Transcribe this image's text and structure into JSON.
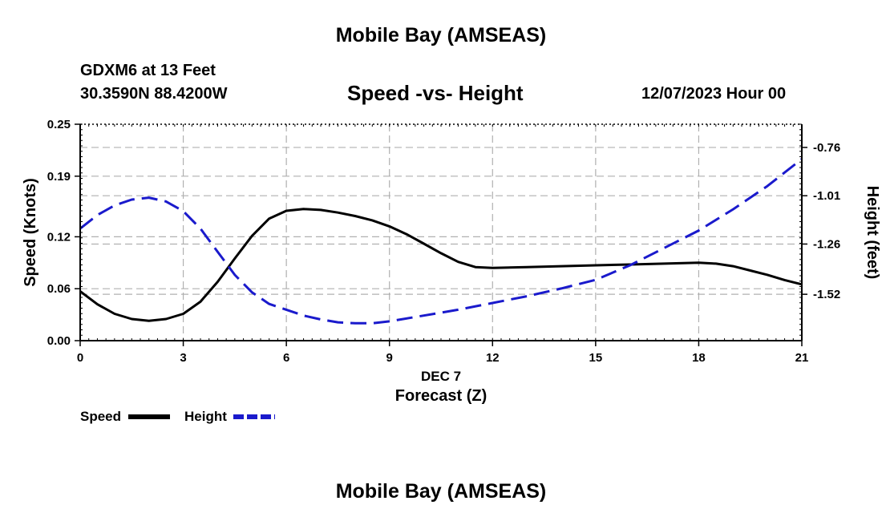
{
  "header": {
    "title": "Mobile Bay (AMSEAS)",
    "station": "GDXM6 at 13 Feet",
    "coords": "30.3590N  88.4200W",
    "chart_title": "Speed -vs- Height",
    "datetime": "12/07/2023 Hour 00"
  },
  "footer": {
    "title": "Mobile Bay (AMSEAS)"
  },
  "colors": {
    "speed": "#000000",
    "height": "#1a1acc",
    "grid": "#b0b0b0"
  },
  "chart_data": {
    "type": "line",
    "title": "Speed -vs- Height",
    "xlabel_top": "DEC 7",
    "xlabel": "Forecast (Z)",
    "ylabel": "Speed (Knots)",
    "y2label": "Height (feet)",
    "xlim": [
      0,
      21
    ],
    "ylim": [
      0,
      0.25
    ],
    "y2lim": [
      -1.76,
      -0.64
    ],
    "x_ticks": [
      "0",
      "3",
      "6",
      "9",
      "12",
      "15",
      "18",
      "21"
    ],
    "y_ticks": [
      "0.00",
      "0.06",
      "0.12",
      "0.19",
      "0.25"
    ],
    "y2_ticks": [
      "-0.76",
      "-1.01",
      "-1.26",
      "-1.52"
    ],
    "legend": [
      {
        "name": "Speed",
        "style": "solid"
      },
      {
        "name": "Height",
        "style": "dashed"
      }
    ],
    "series": [
      {
        "name": "Speed",
        "axis": "left",
        "x": [
          0,
          0.5,
          1,
          1.5,
          2,
          2.5,
          3,
          3.5,
          4,
          4.5,
          5,
          5.5,
          6,
          6.5,
          7,
          7.5,
          8,
          8.5,
          9,
          9.5,
          10,
          10.5,
          11,
          11.5,
          12,
          13,
          14,
          15,
          16,
          17,
          18,
          18.5,
          19,
          19.5,
          20,
          20.5,
          21
        ],
        "values": [
          0.057,
          0.042,
          0.031,
          0.025,
          0.023,
          0.025,
          0.031,
          0.045,
          0.068,
          0.095,
          0.121,
          0.141,
          0.15,
          0.152,
          0.151,
          0.148,
          0.144,
          0.139,
          0.132,
          0.123,
          0.112,
          0.101,
          0.091,
          0.085,
          0.084,
          0.085,
          0.086,
          0.087,
          0.088,
          0.089,
          0.09,
          0.089,
          0.086,
          0.081,
          0.076,
          0.07,
          0.065
        ]
      },
      {
        "name": "Height",
        "axis": "right",
        "x": [
          0,
          0.5,
          1,
          1.5,
          2,
          2.5,
          3,
          3.5,
          4,
          4.5,
          5,
          5.5,
          6,
          6.5,
          7,
          7.5,
          8,
          8.5,
          9,
          10,
          11,
          12,
          13,
          14,
          15,
          16,
          17,
          18,
          19,
          20,
          21
        ],
        "values": [
          -1.18,
          -1.11,
          -1.06,
          -1.03,
          -1.02,
          -1.04,
          -1.09,
          -1.18,
          -1.3,
          -1.42,
          -1.51,
          -1.57,
          -1.6,
          -1.63,
          -1.65,
          -1.665,
          -1.67,
          -1.67,
          -1.66,
          -1.63,
          -1.6,
          -1.565,
          -1.53,
          -1.49,
          -1.445,
          -1.37,
          -1.28,
          -1.19,
          -1.08,
          -0.96,
          -0.82
        ]
      }
    ]
  }
}
